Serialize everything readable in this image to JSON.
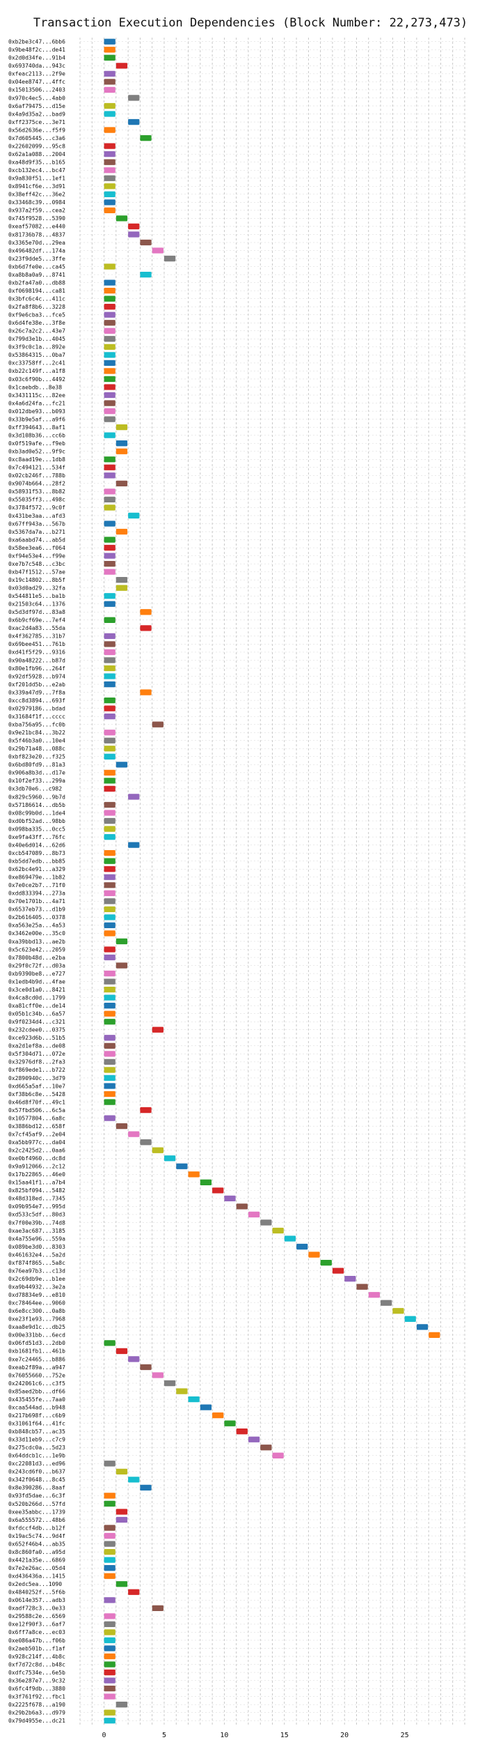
{
  "chart_data": {
    "type": "gantt",
    "title": "Transaction Execution Dependencies (Block Number: 22,273,473)",
    "xlabel": "",
    "ylabel": "",
    "xlim": [
      -2,
      30
    ],
    "xticks": [
      0,
      5,
      10,
      15,
      20,
      25
    ],
    "grid": true,
    "colors": [
      "#1f77b4",
      "#ff7f0e",
      "#2ca02c",
      "#d62728",
      "#9467bd",
      "#8c564b",
      "#e377c2",
      "#7f7f7f",
      "#bcbd22",
      "#17becf"
    ],
    "transactions": [
      {
        "label": "0xb2be3c47...6bb6",
        "start": 0
      },
      {
        "label": "0x9be48f2c...de41",
        "start": 0
      },
      {
        "label": "0x2d0d34fe...91b4",
        "start": 0
      },
      {
        "label": "0x693740da...943c",
        "start": 1
      },
      {
        "label": "0xfeac2113...2f9e",
        "start": 0
      },
      {
        "label": "0x04ee8747...4ffc",
        "start": 0
      },
      {
        "label": "0x15013506...2403",
        "start": 0
      },
      {
        "label": "0x970c4ec5...4ab0",
        "start": 2
      },
      {
        "label": "0x6af79475...d15e",
        "start": 0
      },
      {
        "label": "0x4a9d35a2...bad9",
        "start": 0
      },
      {
        "label": "0xff2375ce...3e71",
        "start": 2
      },
      {
        "label": "0x56d2636e...f5f9",
        "start": 0
      },
      {
        "label": "0x7d605445...c3a6",
        "start": 3
      },
      {
        "label": "0x22602099...95c8",
        "start": 0
      },
      {
        "label": "0x62a1a088...2004",
        "start": 0
      },
      {
        "label": "0xa48d9f35...b165",
        "start": 0
      },
      {
        "label": "0xcb132ec4...bc47",
        "start": 0
      },
      {
        "label": "0x9a830f51...1ef1",
        "start": 0
      },
      {
        "label": "0x8941cf6e...3d91",
        "start": 0
      },
      {
        "label": "0x38eff42c...36e2",
        "start": 0
      },
      {
        "label": "0x33468c39...0984",
        "start": 0
      },
      {
        "label": "0x937a2f59...cea2",
        "start": 0
      },
      {
        "label": "0x745f9528...5390",
        "start": 1
      },
      {
        "label": "0xeaf57082...e440",
        "start": 2
      },
      {
        "label": "0x81736b78...4837",
        "start": 2
      },
      {
        "label": "0x3365e70d...29ea",
        "start": 3
      },
      {
        "label": "0x496482df...174a",
        "start": 4
      },
      {
        "label": "0x23f9dde5...3ffe",
        "start": 5
      },
      {
        "label": "0xb6d7fe0e...ca45",
        "start": 0
      },
      {
        "label": "0xa8b8a0a9...8741",
        "start": 3
      },
      {
        "label": "0xb2fa47a0...db88",
        "start": 0
      },
      {
        "label": "0xf0698194...ca81",
        "start": 0
      },
      {
        "label": "0x3bfc6c4c...411c",
        "start": 0
      },
      {
        "label": "0x2fa8f8b6...3228",
        "start": 0
      },
      {
        "label": "0xf9e6cba3...fce5",
        "start": 0
      },
      {
        "label": "0x6d4fe38e...3f8e",
        "start": 0
      },
      {
        "label": "0x26c7a2c2...43e7",
        "start": 0
      },
      {
        "label": "0x799d3e1b...4045",
        "start": 0
      },
      {
        "label": "0x3f9c0c1a...892e",
        "start": 0
      },
      {
        "label": "0x53864315...0ba7",
        "start": 0
      },
      {
        "label": "0xc33758ff...2c41",
        "start": 0
      },
      {
        "label": "0xb22c149f...a1f8",
        "start": 0
      },
      {
        "label": "0x03c6f90b...4492",
        "start": 0
      },
      {
        "label": "0x1caebdb...8e38",
        "start": 0
      },
      {
        "label": "0x3431115c...82ee",
        "start": 0
      },
      {
        "label": "0x4a6d24fa...fc21",
        "start": 0
      },
      {
        "label": "0x012dbe93...b093",
        "start": 0
      },
      {
        "label": "0x33b9e5af...a9f6",
        "start": 0
      },
      {
        "label": "0xff394643...8af1",
        "start": 1
      },
      {
        "label": "0x3d108b36...cc6b",
        "start": 0
      },
      {
        "label": "0x0f519afe...f9eb",
        "start": 1
      },
      {
        "label": "0xb3ad0e52...9f9c",
        "start": 1
      },
      {
        "label": "0xc8aad19e...1db8",
        "start": 0
      },
      {
        "label": "0x7c494121...534f",
        "start": 0
      },
      {
        "label": "0x02cb246f...788b",
        "start": 0
      },
      {
        "label": "0x9074b664...28f2",
        "start": 1
      },
      {
        "label": "0x58931f53...8b82",
        "start": 0
      },
      {
        "label": "0x55035ff3...498c",
        "start": 0
      },
      {
        "label": "0x3784f572...9c0f",
        "start": 0
      },
      {
        "label": "0x431be3aa...afd3",
        "start": 2
      },
      {
        "label": "0x67ff943a...567b",
        "start": 0
      },
      {
        "label": "0x5367da7a...b271",
        "start": 1
      },
      {
        "label": "0xa6aabd74...ab5d",
        "start": 0
      },
      {
        "label": "0x58ee3ea6...f064",
        "start": 0
      },
      {
        "label": "0xf94e53e4...f99e",
        "start": 0
      },
      {
        "label": "0xe7b7c548...c3bc",
        "start": 0
      },
      {
        "label": "0xb47f1512...57ae",
        "start": 0
      },
      {
        "label": "0x19c14802...8b5f",
        "start": 1
      },
      {
        "label": "0x03d0ad29...32fa",
        "start": 1
      },
      {
        "label": "0x544811e5...ba1b",
        "start": 0
      },
      {
        "label": "0x21503c64...1376",
        "start": 0
      },
      {
        "label": "0x5d3df97d...83a8",
        "start": 3
      },
      {
        "label": "0x6b9cf69e...7ef4",
        "start": 0
      },
      {
        "label": "0xac2d4a83...55da",
        "start": 3
      },
      {
        "label": "0x4f362785...31b7",
        "start": 0
      },
      {
        "label": "0x69bee451...761b",
        "start": 0
      },
      {
        "label": "0xd41f5f29...9316",
        "start": 0
      },
      {
        "label": "0x90a48222...b87d",
        "start": 0
      },
      {
        "label": "0x80e1fb96...264f",
        "start": 0
      },
      {
        "label": "0x92df5928...b974",
        "start": 0
      },
      {
        "label": "0xf201dd5b...e2ab",
        "start": 0
      },
      {
        "label": "0x339a47d9...7f8a",
        "start": 3
      },
      {
        "label": "0xcc8d3894...693f",
        "start": 0
      },
      {
        "label": "0x02979186...bdad",
        "start": 0
      },
      {
        "label": "0x31684f1f...cccc",
        "start": 0
      },
      {
        "label": "0xba756a95...fc0b",
        "start": 4
      },
      {
        "label": "0x9e21bc84...3b22",
        "start": 0
      },
      {
        "label": "0x5f46b3a0...10e4",
        "start": 0
      },
      {
        "label": "0x29b71a48...088c",
        "start": 0
      },
      {
        "label": "0xbf823e20...f325",
        "start": 0
      },
      {
        "label": "0x6bd80fd9...81a3",
        "start": 1
      },
      {
        "label": "0x906a8b3d...d17e",
        "start": 0
      },
      {
        "label": "0x10f2ef33...299a",
        "start": 0
      },
      {
        "label": "0x3db70e6...c982",
        "start": 0
      },
      {
        "label": "0x829c5960...9b7d",
        "start": 2
      },
      {
        "label": "0x57186614...db5b",
        "start": 0
      },
      {
        "label": "0x08c99b0d...1de4",
        "start": 0
      },
      {
        "label": "0xd0bf52ad...98bb",
        "start": 0
      },
      {
        "label": "0x098ba335...0cc5",
        "start": 0
      },
      {
        "label": "0xe9fa43ff...76fc",
        "start": 0
      },
      {
        "label": "0x40e6d014...62d6",
        "start": 2
      },
      {
        "label": "0xcb547089...8b73",
        "start": 0
      },
      {
        "label": "0xb5dd7edb...bb85",
        "start": 0
      },
      {
        "label": "0x62bc4e91...a329",
        "start": 0
      },
      {
        "label": "0xe869479e...1b82",
        "start": 0
      },
      {
        "label": "0x7e0ce2b7...71f0",
        "start": 0
      },
      {
        "label": "0xdd833394...273a",
        "start": 0
      },
      {
        "label": "0x70e1701b...4a71",
        "start": 0
      },
      {
        "label": "0x6537eb73...d1b9",
        "start": 0
      },
      {
        "label": "0x2b616405...0378",
        "start": 0
      },
      {
        "label": "0xa563e25a...4a53",
        "start": 0
      },
      {
        "label": "0x3462e00e...35c0",
        "start": 0
      },
      {
        "label": "0xa39bbd13...ae2b",
        "start": 1
      },
      {
        "label": "0x5c623e42...2059",
        "start": 0
      },
      {
        "label": "0x7800b48d...e2ba",
        "start": 0
      },
      {
        "label": "0x29f0c72f...d03a",
        "start": 1
      },
      {
        "label": "0xb9390be8...e727",
        "start": 0
      },
      {
        "label": "0x1edb4b9d...4fae",
        "start": 0
      },
      {
        "label": "0x3ce0d1a0...8421",
        "start": 0
      },
      {
        "label": "0x4ca8cd0d...1799",
        "start": 0
      },
      {
        "label": "0xa81cff0e...de14",
        "start": 0
      },
      {
        "label": "0x05b1c34b...6a57",
        "start": 0
      },
      {
        "label": "0x9f0234d4...c321",
        "start": 0
      },
      {
        "label": "0x232cdee0...0375",
        "start": 4
      },
      {
        "label": "0xce923d6b...51b5",
        "start": 0
      },
      {
        "label": "0xa2d1ef8a...de08",
        "start": 0
      },
      {
        "label": "0x5f304d71...072e",
        "start": 0
      },
      {
        "label": "0x32976df8...2fa3",
        "start": 0
      },
      {
        "label": "0xf869ede1...b722",
        "start": 0
      },
      {
        "label": "0x2890940c...3d79",
        "start": 0
      },
      {
        "label": "0xd665a5af...10e7",
        "start": 0
      },
      {
        "label": "0xf38b6c8e...5428",
        "start": 0
      },
      {
        "label": "0x46d8f70f...49c1",
        "start": 0
      },
      {
        "label": "0x57fbd506...6c5a",
        "start": 3
      },
      {
        "label": "0x10577804...6a8c",
        "start": 0
      },
      {
        "label": "0x3886bd12...658f",
        "start": 1
      },
      {
        "label": "0x7cf45af9...2e04",
        "start": 2
      },
      {
        "label": "0xa5bb977c...da04",
        "start": 3
      },
      {
        "label": "0x2c2425d2...0aa6",
        "start": 4
      },
      {
        "label": "0xe0bf4960...dc8d",
        "start": 5
      },
      {
        "label": "0x9a912066...2c12",
        "start": 6
      },
      {
        "label": "0x17b22865...46e0",
        "start": 7
      },
      {
        "label": "0x15aa41f1...a7b4",
        "start": 8
      },
      {
        "label": "0x825bf094...5482",
        "start": 9
      },
      {
        "label": "0x48d318ed...7345",
        "start": 10
      },
      {
        "label": "0x09b954e7...995d",
        "start": 11
      },
      {
        "label": "0xd533c5df...80d3",
        "start": 12
      },
      {
        "label": "0x7f00e39b...74d8",
        "start": 13
      },
      {
        "label": "0xae3ac687...3185",
        "start": 14
      },
      {
        "label": "0x4a755e96...559a",
        "start": 15
      },
      {
        "label": "0x089be3d0...8303",
        "start": 16
      },
      {
        "label": "0x461632e4...5a2d",
        "start": 17
      },
      {
        "label": "0xf874f865...5a8c",
        "start": 18
      },
      {
        "label": "0x76ea97b3...c13d",
        "start": 19
      },
      {
        "label": "0x2c69db9e...b1ee",
        "start": 20
      },
      {
        "label": "0xa9b44932...3e2a",
        "start": 21
      },
      {
        "label": "0xd78834e9...e810",
        "start": 22
      },
      {
        "label": "0xc78464ee...9060",
        "start": 23
      },
      {
        "label": "0x6e8cc300...0a8b",
        "start": 24
      },
      {
        "label": "0xe23f1e93...7968",
        "start": 25
      },
      {
        "label": "0xaa8e9d1c...db25",
        "start": 26
      },
      {
        "label": "0x00e331bb...6ecd",
        "start": 27
      },
      {
        "label": "0x06fd51d3...2db0",
        "start": 0
      },
      {
        "label": "0xb1681fb1...461b",
        "start": 1
      },
      {
        "label": "0xe7c24465...b886",
        "start": 2
      },
      {
        "label": "0xeab2f89a...a947",
        "start": 3
      },
      {
        "label": "0x76055660...752e",
        "start": 4
      },
      {
        "label": "0x242061c6...c3f5",
        "start": 5
      },
      {
        "label": "0x85aed2bb...df66",
        "start": 6
      },
      {
        "label": "0x435455fe...7aa0",
        "start": 7
      },
      {
        "label": "0xcaa544ad...b948",
        "start": 8
      },
      {
        "label": "0x217b698f...c6b9",
        "start": 9
      },
      {
        "label": "0x31061f64...41fc",
        "start": 10
      },
      {
        "label": "0xb848cb57...ac35",
        "start": 11
      },
      {
        "label": "0x33d11eb9...c7c9",
        "start": 12
      },
      {
        "label": "0x275cdc0a...5d23",
        "start": 13
      },
      {
        "label": "0x64ddcb1c...1e9b",
        "start": 14
      },
      {
        "label": "0xc22081d3...ed96",
        "start": 0
      },
      {
        "label": "0x243cd6f0...b637",
        "start": 1
      },
      {
        "label": "0x342f0648...8c45",
        "start": 2
      },
      {
        "label": "0x8e390286...8aaf",
        "start": 3
      },
      {
        "label": "0x93fd5dae...6c3f",
        "start": 0
      },
      {
        "label": "0x520b266d...57fd",
        "start": 0
      },
      {
        "label": "0xee35abbc...1739",
        "start": 1
      },
      {
        "label": "0x6a555572...48b6",
        "start": 1
      },
      {
        "label": "0xfdccf4db...b12f",
        "start": 0
      },
      {
        "label": "0x19ac5c74...9d4f",
        "start": 0
      },
      {
        "label": "0x652f46b4...ab35",
        "start": 0
      },
      {
        "label": "0x8c860fa0...a95d",
        "start": 0
      },
      {
        "label": "0x4421a35e...6869",
        "start": 0
      },
      {
        "label": "0x7e2e26ac...05d4",
        "start": 0
      },
      {
        "label": "0xd436436a...1415",
        "start": 0
      },
      {
        "label": "0x2edc5ea...1090",
        "start": 1
      },
      {
        "label": "0x4840252f...5f6b",
        "start": 2
      },
      {
        "label": "0x0614e357...adb3",
        "start": 0
      },
      {
        "label": "0xadf728c3...0e33",
        "start": 4
      },
      {
        "label": "0x29588c2e...6569",
        "start": 0
      },
      {
        "label": "0xe12f90f3...6af7",
        "start": 0
      },
      {
        "label": "0x6ff7a8ce...ec03",
        "start": 0
      },
      {
        "label": "0xe086a47b...f06b",
        "start": 0
      },
      {
        "label": "0x2aeb501b...f1af",
        "start": 0
      },
      {
        "label": "0x928c214f...4b8c",
        "start": 0
      },
      {
        "label": "0xf7d72c8d...b48c",
        "start": 0
      },
      {
        "label": "0xdfc7534e...6e5b",
        "start": 0
      },
      {
        "label": "0x36e287e7...9c32",
        "start": 0
      },
      {
        "label": "0x6fc4f9db...3880",
        "start": 0
      },
      {
        "label": "0x3f761f92...fbc1",
        "start": 0
      },
      {
        "label": "0x2225f678...a190",
        "start": 1
      },
      {
        "label": "0x29b2b6a3...d979",
        "start": 0
      },
      {
        "label": "0x79d4955e...dc21",
        "start": 0
      }
    ]
  }
}
